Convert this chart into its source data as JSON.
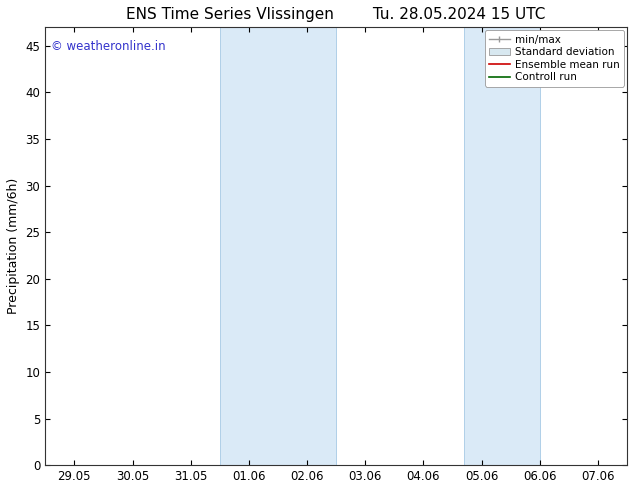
{
  "title_left": "ENS Time Series Vlissingen",
  "title_right": "Tu. 28.05.2024 15 UTC",
  "ylabel": "Precipitation (mm/6h)",
  "ylim": [
    0,
    47
  ],
  "yticks": [
    0,
    5,
    10,
    15,
    20,
    25,
    30,
    35,
    40,
    45
  ],
  "xtick_labels": [
    "29.05",
    "30.05",
    "31.05",
    "01.06",
    "02.06",
    "03.06",
    "04.06",
    "05.06",
    "06.06",
    "07.06"
  ],
  "xtick_positions": [
    0,
    1,
    2,
    3,
    4,
    5,
    6,
    7,
    8,
    9
  ],
  "xlim": [
    -0.5,
    9.5
  ],
  "shaded_regions": [
    {
      "x_start": 2.5,
      "x_end": 4.5
    },
    {
      "x_start": 6.7,
      "x_end": 8.0
    }
  ],
  "shaded_color": "#daeaf7",
  "shaded_edge_color": "#b0cfe8",
  "background_color": "#ffffff",
  "plot_bg_color": "#ffffff",
  "watermark_text": "© weatheronline.in",
  "watermark_color": "#3333cc",
  "title_fontsize": 11,
  "tick_fontsize": 8.5,
  "ylabel_fontsize": 9,
  "watermark_fontsize": 8.5,
  "legend_fontsize": 7.5,
  "figsize": [
    6.34,
    4.9
  ],
  "dpi": 100
}
